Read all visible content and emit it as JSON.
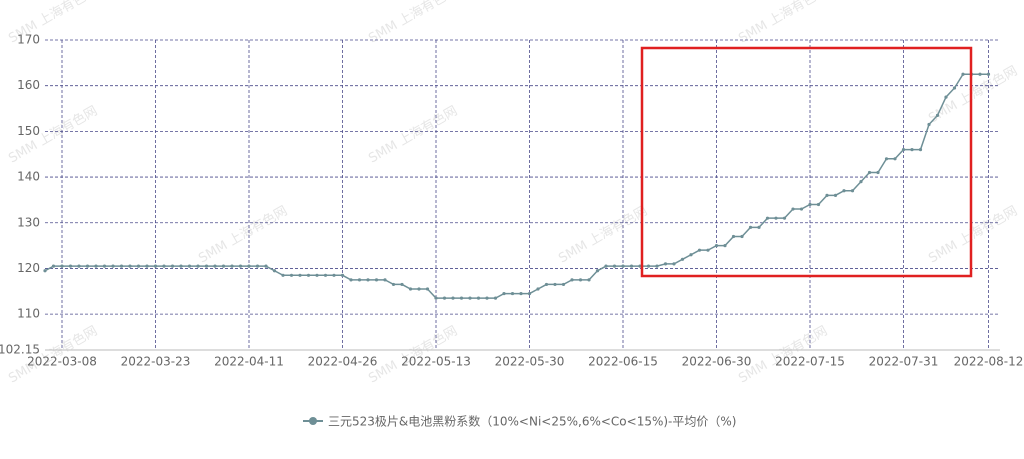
{
  "chart_data": {
    "type": "line",
    "watermark": "SMM 上海有色网",
    "categories": [
      null,
      null,
      "2022-03-08",
      null,
      null,
      null,
      null,
      null,
      null,
      null,
      null,
      null,
      null,
      "2022-03-23",
      null,
      null,
      null,
      null,
      null,
      null,
      null,
      null,
      null,
      null,
      "2022-04-11",
      null,
      null,
      null,
      null,
      null,
      null,
      null,
      null,
      null,
      null,
      "2022-04-26",
      null,
      null,
      null,
      null,
      null,
      null,
      null,
      null,
      null,
      null,
      "2022-05-13",
      null,
      null,
      null,
      null,
      null,
      null,
      null,
      null,
      null,
      null,
      "2022-05-30",
      null,
      null,
      null,
      null,
      null,
      null,
      null,
      null,
      null,
      null,
      "2022-06-15",
      null,
      null,
      null,
      null,
      null,
      null,
      null,
      null,
      null,
      null,
      "2022-06-30",
      null,
      null,
      null,
      null,
      null,
      null,
      null,
      null,
      null,
      null,
      "2022-07-15",
      null,
      null,
      null,
      null,
      null,
      null,
      null,
      null,
      null,
      null,
      "2022-07-31",
      null,
      null,
      null,
      null,
      null,
      null,
      null,
      null,
      null,
      "2022-08-12"
    ],
    "series": [
      {
        "name": "三元523极片&电池黑粉系数（10%<Ni<25%,6%<Co<15%)-平均价（%)",
        "color": "#6e8f96",
        "values": [
          119.5,
          120.5,
          120.5,
          120.5,
          120.5,
          120.5,
          120.5,
          120.5,
          120.5,
          120.5,
          120.5,
          120.5,
          120.5,
          120.5,
          120.5,
          120.5,
          120.5,
          120.5,
          120.5,
          120.5,
          120.5,
          120.5,
          120.5,
          120.5,
          120.5,
          120.5,
          120.5,
          119.5,
          118.5,
          118.5,
          118.5,
          118.5,
          118.5,
          118.5,
          118.5,
          118.5,
          117.5,
          117.5,
          117.5,
          117.5,
          117.5,
          116.5,
          116.5,
          115.5,
          115.5,
          115.5,
          113.5,
          113.5,
          113.5,
          113.5,
          113.5,
          113.5,
          113.5,
          113.5,
          114.5,
          114.5,
          114.5,
          114.5,
          115.5,
          116.5,
          116.5,
          116.5,
          117.5,
          117.5,
          117.5,
          119.5,
          120.5,
          120.5,
          120.5,
          120.5,
          120.5,
          120.5,
          120.5,
          121,
          121,
          122,
          123,
          124,
          124,
          125,
          125,
          127,
          127,
          129,
          129,
          131,
          131,
          131,
          133,
          133,
          134,
          134,
          136,
          136,
          137,
          137,
          139,
          141,
          141,
          144,
          144,
          146,
          146,
          146,
          151.5,
          153.5,
          157.5,
          159.5,
          162.5,
          162.5,
          162.5,
          162.5
        ]
      }
    ],
    "ylim": [
      102.15,
      170
    ],
    "yticks": [
      102.15,
      110,
      120,
      130,
      140,
      150,
      160,
      170
    ],
    "grid": true
  }
}
